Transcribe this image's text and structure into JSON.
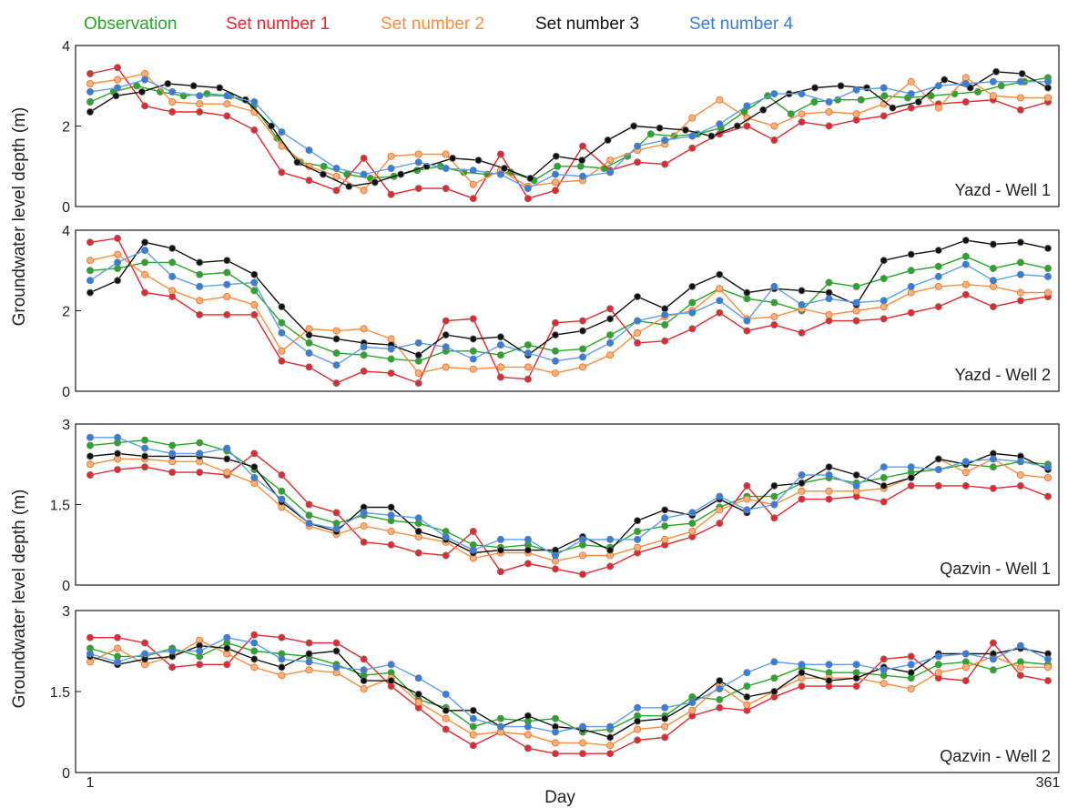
{
  "legend": [
    {
      "name": "Observation",
      "color": "#22aa22"
    },
    {
      "name": "Set number 1",
      "color": "#e8262b"
    },
    {
      "name": "Set number 2",
      "color": "#ff8c3a"
    },
    {
      "name": "Set number 3",
      "color": "#111111"
    },
    {
      "name": "Set number 4",
      "color": "#2f7fe8"
    }
  ],
  "ylabel_top": "Groundwater level depth (m)",
  "ylabel_bottom": "Groundwater level depth (m)",
  "xlabel": "Day",
  "x_tick_labels": [
    "1",
    "361"
  ],
  "chart_data": [
    {
      "type": "line",
      "title": "Yazd - Well 1",
      "xlim": [
        1,
        361
      ],
      "ylim": [
        0,
        4
      ],
      "y_ticks": [
        "0",
        "2",
        "4"
      ],
      "series": [
        {
          "name": "Observation",
          "values": [
            2.6,
            2.85,
            3.0,
            2.85,
            2.75,
            2.8,
            2.75,
            2.5,
            1.7,
            1.1,
            1.0,
            0.8,
            0.7,
            0.75,
            0.9,
            1.0,
            0.85,
            0.8,
            0.85,
            0.65,
            1.0,
            1.0,
            0.95,
            1.25,
            1.8,
            1.75,
            1.8,
            1.95,
            2.35,
            2.75,
            2.3,
            2.6,
            2.65,
            2.65,
            2.75,
            2.7,
            2.75,
            2.8,
            2.85,
            3.0,
            3.1,
            3.2
          ]
        },
        {
          "name": "Set number 1",
          "values": [
            3.3,
            3.45,
            2.5,
            2.35,
            2.35,
            2.25,
            1.9,
            0.85,
            0.65,
            0.4,
            1.2,
            0.3,
            0.45,
            0.45,
            0.2,
            1.3,
            0.2,
            0.4,
            1.5,
            0.9,
            1.1,
            1.05,
            1.45,
            1.8,
            2.0,
            1.65,
            2.1,
            2.0,
            2.15,
            2.25,
            2.45,
            2.55,
            2.6,
            2.65,
            2.4,
            2.6
          ]
        },
        {
          "name": "Set number 2",
          "values": [
            3.05,
            3.15,
            3.3,
            2.6,
            2.55,
            2.55,
            2.35,
            1.5,
            1.0,
            0.75,
            0.4,
            1.25,
            1.3,
            1.3,
            0.55,
            0.9,
            0.5,
            0.6,
            0.65,
            1.15,
            1.4,
            1.55,
            2.2,
            2.65,
            2.2,
            2.0,
            2.3,
            2.35,
            2.3,
            2.55,
            3.1,
            2.45,
            3.2,
            2.75,
            2.7,
            2.7
          ]
        },
        {
          "name": "Set number 3",
          "values": [
            2.35,
            2.75,
            2.85,
            3.05,
            3.0,
            2.95,
            2.65,
            2.0,
            1.1,
            0.8,
            0.5,
            0.6,
            0.8,
            1.0,
            1.2,
            1.15,
            0.95,
            0.7,
            1.25,
            1.15,
            1.65,
            2.0,
            1.95,
            1.9,
            1.75,
            2.0,
            2.4,
            2.8,
            2.95,
            3.0,
            2.95,
            2.45,
            2.6,
            3.15,
            2.95,
            3.35,
            3.3,
            2.95
          ]
        },
        {
          "name": "Set number 4",
          "values": [
            2.85,
            2.95,
            3.15,
            2.85,
            2.75,
            2.75,
            2.6,
            1.85,
            1.4,
            0.95,
            0.8,
            0.95,
            1.1,
            0.95,
            0.9,
            0.8,
            0.45,
            0.8,
            0.75,
            0.85,
            1.5,
            1.65,
            1.75,
            2.05,
            2.5,
            2.8,
            2.8,
            2.6,
            2.9,
            2.95,
            2.8,
            3.0,
            3.05,
            3.1,
            3.1,
            3.1
          ]
        }
      ]
    },
    {
      "type": "line",
      "title": "Yazd - Well 2",
      "xlim": [
        1,
        361
      ],
      "ylim": [
        0,
        4
      ],
      "y_ticks": [
        "0",
        "2",
        "4"
      ],
      "series": [
        {
          "name": "Observation",
          "values": [
            3.0,
            3.05,
            3.2,
            3.2,
            2.9,
            2.95,
            2.5,
            1.7,
            1.2,
            0.95,
            0.9,
            0.8,
            0.75,
            1.0,
            1.0,
            0.9,
            1.15,
            1.0,
            1.05,
            1.4,
            1.75,
            1.65,
            2.2,
            2.55,
            2.3,
            2.2,
            2.0,
            2.7,
            2.6,
            2.8,
            3.0,
            3.1,
            3.35,
            3.05,
            3.2,
            3.05
          ]
        },
        {
          "name": "Set number 1",
          "values": [
            3.7,
            3.8,
            2.45,
            2.35,
            1.9,
            1.9,
            1.9,
            0.75,
            0.6,
            0.2,
            0.5,
            0.45,
            0.2,
            1.75,
            1.8,
            0.35,
            0.3,
            1.7,
            1.75,
            2.05,
            1.2,
            1.25,
            1.55,
            1.95,
            1.5,
            1.65,
            1.45,
            1.75,
            1.75,
            1.8,
            1.95,
            2.1,
            2.4,
            2.1,
            2.25,
            2.35
          ]
        },
        {
          "name": "Set number 2",
          "values": [
            3.25,
            3.4,
            2.9,
            2.5,
            2.25,
            2.35,
            2.15,
            1.0,
            1.55,
            1.5,
            1.55,
            1.3,
            0.45,
            0.6,
            0.55,
            0.6,
            0.6,
            0.45,
            0.6,
            0.9,
            1.45,
            1.85,
            2.0,
            2.55,
            1.8,
            1.85,
            2.05,
            1.9,
            2.0,
            2.1,
            2.45,
            2.6,
            2.65,
            2.6,
            2.45,
            2.45
          ]
        },
        {
          "name": "Set number 3",
          "values": [
            2.45,
            2.75,
            3.7,
            3.55,
            3.2,
            3.25,
            2.9,
            2.1,
            1.4,
            1.3,
            1.2,
            1.15,
            0.9,
            1.4,
            1.3,
            1.35,
            0.9,
            1.4,
            1.5,
            1.8,
            2.35,
            2.05,
            2.6,
            2.9,
            2.45,
            2.55,
            2.5,
            2.45,
            2.15,
            3.25,
            3.4,
            3.5,
            3.75,
            3.65,
            3.7,
            3.55
          ]
        },
        {
          "name": "Set number 4",
          "values": [
            2.75,
            3.2,
            3.5,
            2.85,
            2.6,
            2.65,
            2.7,
            1.45,
            0.95,
            0.65,
            1.1,
            1.05,
            1.2,
            1.1,
            0.8,
            1.15,
            0.95,
            0.75,
            0.85,
            1.2,
            1.75,
            1.9,
            1.95,
            2.25,
            1.75,
            2.6,
            2.15,
            2.3,
            2.2,
            2.25,
            2.6,
            2.85,
            3.15,
            2.75,
            2.9,
            2.85
          ]
        }
      ]
    },
    {
      "type": "line",
      "title": "Qazvin - Well 1",
      "xlim": [
        1,
        361
      ],
      "ylim": [
        0,
        3
      ],
      "y_ticks": [
        "0",
        "1.5",
        "3"
      ],
      "series": [
        {
          "name": "Observation",
          "values": [
            2.6,
            2.65,
            2.7,
            2.6,
            2.65,
            2.5,
            2.15,
            1.75,
            1.3,
            1.15,
            1.3,
            1.2,
            1.15,
            1.0,
            0.75,
            0.7,
            0.75,
            0.6,
            0.75,
            0.7,
            1.0,
            1.1,
            1.15,
            1.45,
            1.65,
            1.65,
            1.9,
            2.0,
            1.9,
            2.0,
            2.1,
            2.15,
            2.25,
            2.2,
            2.3,
            2.25
          ]
        },
        {
          "name": "Set number 1",
          "values": [
            2.05,
            2.15,
            2.2,
            2.1,
            2.1,
            2.05,
            2.45,
            2.05,
            1.5,
            1.35,
            0.8,
            0.75,
            0.6,
            0.55,
            1.0,
            0.25,
            0.4,
            0.3,
            0.2,
            0.35,
            0.6,
            0.75,
            0.9,
            1.15,
            1.85,
            1.25,
            1.6,
            1.6,
            1.65,
            1.55,
            1.85,
            1.85,
            1.85,
            1.8,
            1.85,
            1.65
          ]
        },
        {
          "name": "Set number 2",
          "values": [
            2.25,
            2.35,
            2.35,
            2.3,
            2.3,
            2.1,
            1.9,
            1.45,
            1.1,
            0.95,
            1.1,
            1.0,
            0.9,
            0.8,
            0.5,
            0.6,
            0.6,
            0.45,
            0.55,
            0.55,
            0.7,
            0.85,
            1.0,
            1.4,
            1.6,
            1.5,
            1.75,
            1.75,
            1.75,
            1.8,
            2.0,
            2.35,
            2.1,
            2.35,
            2.05,
            2.0
          ]
        },
        {
          "name": "Set number 3",
          "values": [
            2.4,
            2.45,
            2.4,
            2.4,
            2.4,
            2.35,
            2.2,
            1.55,
            1.15,
            1.0,
            1.45,
            1.45,
            1.0,
            0.85,
            0.6,
            0.65,
            0.65,
            0.65,
            0.9,
            0.65,
            1.2,
            1.4,
            1.3,
            1.6,
            1.35,
            1.85,
            1.9,
            2.2,
            2.05,
            1.85,
            2.0,
            2.35,
            2.25,
            2.45,
            2.4,
            2.15
          ]
        },
        {
          "name": "Set number 4",
          "values": [
            2.75,
            2.75,
            2.55,
            2.45,
            2.45,
            2.55,
            2.0,
            1.6,
            1.15,
            1.05,
            1.35,
            1.3,
            1.25,
            0.9,
            0.65,
            0.85,
            0.85,
            0.55,
            0.85,
            0.85,
            0.85,
            1.25,
            1.35,
            1.65,
            1.4,
            1.5,
            2.05,
            2.05,
            1.85,
            2.2,
            2.2,
            2.15,
            2.3,
            2.35,
            2.3,
            2.2
          ]
        }
      ]
    },
    {
      "type": "line",
      "title": "Qazvin - Well 2",
      "xlim": [
        1,
        361
      ],
      "ylim": [
        0,
        3
      ],
      "y_ticks": [
        "0",
        "1.5",
        "3"
      ],
      "series": [
        {
          "name": "Observation",
          "values": [
            2.3,
            2.15,
            2.15,
            2.3,
            2.15,
            2.4,
            2.25,
            2.2,
            2.15,
            2.0,
            1.8,
            1.85,
            1.35,
            1.2,
            0.85,
            1.0,
            0.95,
            1.0,
            0.75,
            0.8,
            1.05,
            1.05,
            1.4,
            1.35,
            1.6,
            1.75,
            1.95,
            1.85,
            1.85,
            1.8,
            1.75,
            2.0,
            2.05,
            1.9,
            2.05,
            2.0
          ]
        },
        {
          "name": "Set number 1",
          "values": [
            2.5,
            2.5,
            2.4,
            1.95,
            2.0,
            2.0,
            2.55,
            2.5,
            2.4,
            2.4,
            2.1,
            1.6,
            1.2,
            0.8,
            0.5,
            0.75,
            0.45,
            0.35,
            0.35,
            0.35,
            0.6,
            0.65,
            1.05,
            1.2,
            1.15,
            1.4,
            1.6,
            1.6,
            1.6,
            2.1,
            2.15,
            1.75,
            1.7,
            2.4,
            1.8,
            1.7
          ]
        },
        {
          "name": "Set number 2",
          "values": [
            2.05,
            2.3,
            2.0,
            2.15,
            2.45,
            2.2,
            1.95,
            1.8,
            1.9,
            1.85,
            1.55,
            1.75,
            1.3,
            1.0,
            0.7,
            0.75,
            0.7,
            0.55,
            0.55,
            0.5,
            0.8,
            0.85,
            1.15,
            1.6,
            1.25,
            1.5,
            1.75,
            1.75,
            1.75,
            1.65,
            1.55,
            1.85,
            1.95,
            2.15,
            1.95,
            1.95
          ]
        },
        {
          "name": "Set number 3",
          "values": [
            2.15,
            2.0,
            2.1,
            2.15,
            2.35,
            2.3,
            2.1,
            1.95,
            2.2,
            2.25,
            1.7,
            1.7,
            1.45,
            1.15,
            1.15,
            0.85,
            1.05,
            0.85,
            0.8,
            0.65,
            0.95,
            1.0,
            1.3,
            1.7,
            1.4,
            1.5,
            1.85,
            1.7,
            1.75,
            1.95,
            1.85,
            2.2,
            2.2,
            2.2,
            2.3,
            2.2
          ]
        },
        {
          "name": "Set number 4",
          "values": [
            2.2,
            2.05,
            2.2,
            2.25,
            2.25,
            2.5,
            2.4,
            2.1,
            2.05,
            1.95,
            1.9,
            2.0,
            1.75,
            1.45,
            1.0,
            0.85,
            0.85,
            0.75,
            0.85,
            0.85,
            1.2,
            1.2,
            1.3,
            1.55,
            1.85,
            2.05,
            2.0,
            2.0,
            2.0,
            1.9,
            2.0,
            2.15,
            2.2,
            2.1,
            2.35,
            2.1
          ]
        }
      ]
    }
  ]
}
